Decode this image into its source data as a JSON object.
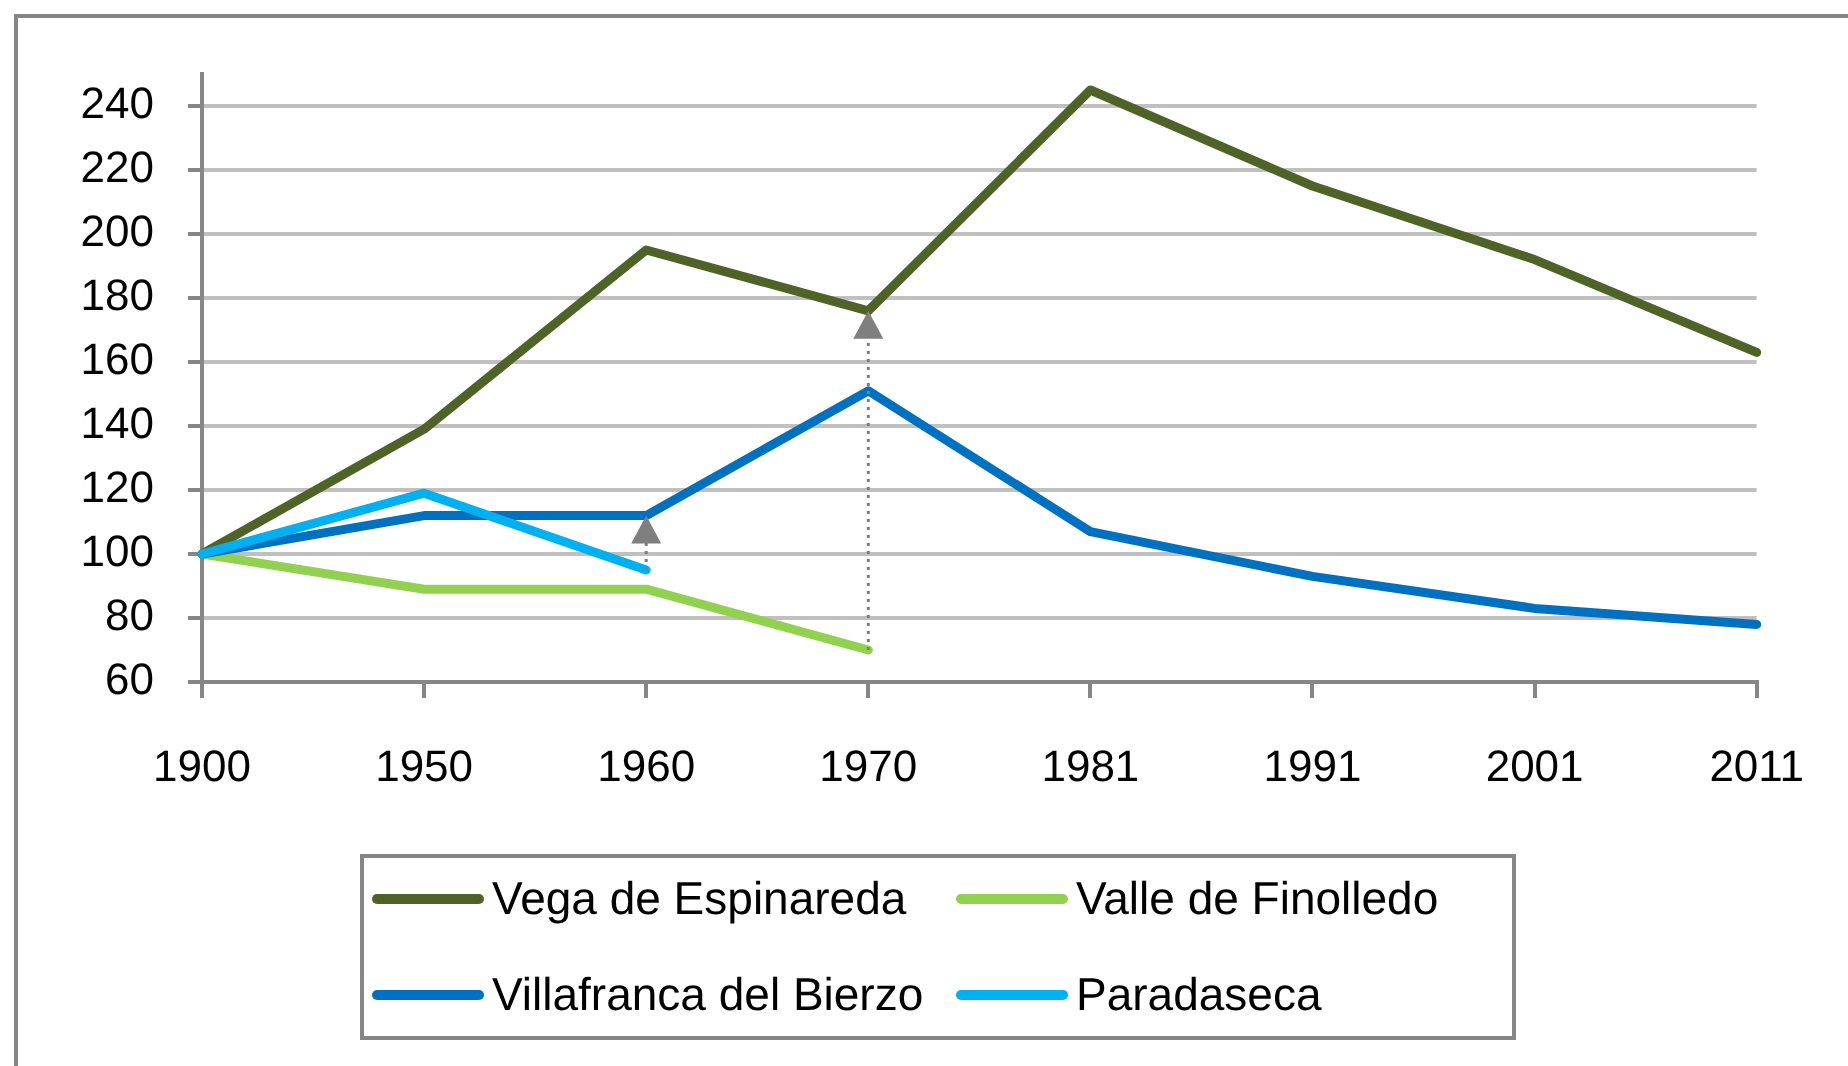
{
  "chart_data": {
    "type": "line",
    "categories": [
      "1900",
      "1950",
      "1960",
      "1970",
      "1981",
      "1991",
      "2001",
      "2011"
    ],
    "series": [
      {
        "name": "Vega de Espinareda",
        "color": "#4f6228",
        "values": [
          100,
          139,
          195,
          176,
          245,
          215,
          192,
          163
        ]
      },
      {
        "name": "Valle de Finolledo",
        "color": "#92d050",
        "values": [
          100,
          89,
          89,
          70,
          null,
          null,
          null,
          null
        ]
      },
      {
        "name": "Villafranca del Bierzo",
        "color": "#0070c0",
        "values": [
          100,
          112,
          112,
          151,
          107,
          93,
          83,
          78
        ]
      },
      {
        "name": "Paradaseca",
        "color": "#00b0f0",
        "values": [
          100,
          119,
          95,
          null,
          null,
          null,
          null,
          null
        ]
      }
    ],
    "ylim": [
      60,
      250
    ],
    "yticks": [
      60,
      80,
      100,
      120,
      140,
      160,
      180,
      200,
      220,
      240
    ],
    "grid": "y",
    "legend": "bottom",
    "marker": "none",
    "line_style": "solid"
  }
}
